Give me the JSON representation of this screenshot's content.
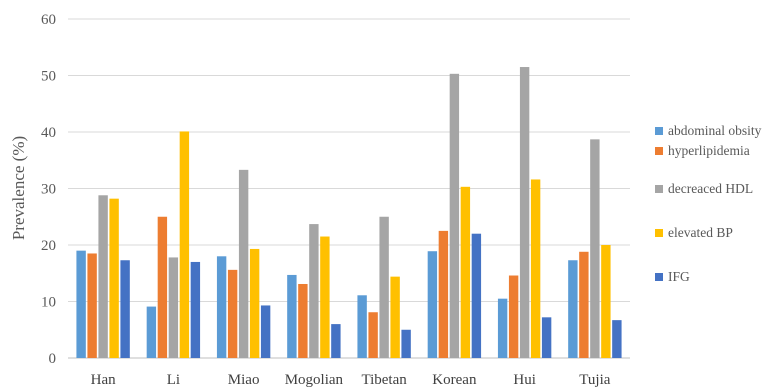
{
  "chart_data": {
    "type": "bar",
    "title": "",
    "xlabel": "",
    "ylabel": "Prevalence (%)",
    "ylim": [
      0,
      60
    ],
    "yticks": [
      "0",
      "10",
      "20",
      "30",
      "40",
      "50",
      "60"
    ],
    "grid": true,
    "legend_position": "right",
    "categories": [
      "Han",
      "Li",
      "Miao",
      "Mogolian",
      "Tibetan",
      "Korean",
      "Hui",
      "Tujia"
    ],
    "series": [
      {
        "name": "abdominal obsity",
        "color": "#5B9BD5",
        "values": [
          19.0,
          9.1,
          18.0,
          14.7,
          11.1,
          18.9,
          10.5,
          17.3
        ]
      },
      {
        "name": "hyperlipidemia",
        "color": "#ED7D31",
        "values": [
          18.5,
          25.0,
          15.6,
          13.1,
          8.1,
          22.5,
          14.6,
          18.8
        ]
      },
      {
        "name": "decreaced HDL",
        "color": "#A5A5A5",
        "values": [
          28.8,
          17.8,
          33.3,
          23.7,
          25.0,
          50.3,
          51.5,
          38.7
        ]
      },
      {
        "name": "elevated BP",
        "color": "#FFC000",
        "values": [
          28.2,
          40.1,
          19.3,
          21.5,
          14.4,
          30.3,
          31.6,
          20.0
        ]
      },
      {
        "name": "IFG",
        "color": "#4472C4",
        "values": [
          17.3,
          17.0,
          9.3,
          6.0,
          5.0,
          22.0,
          7.2,
          6.7
        ]
      }
    ]
  },
  "styles": {
    "grid_color": "#D9D9D9",
    "axis_color": "#BFBFBF"
  }
}
